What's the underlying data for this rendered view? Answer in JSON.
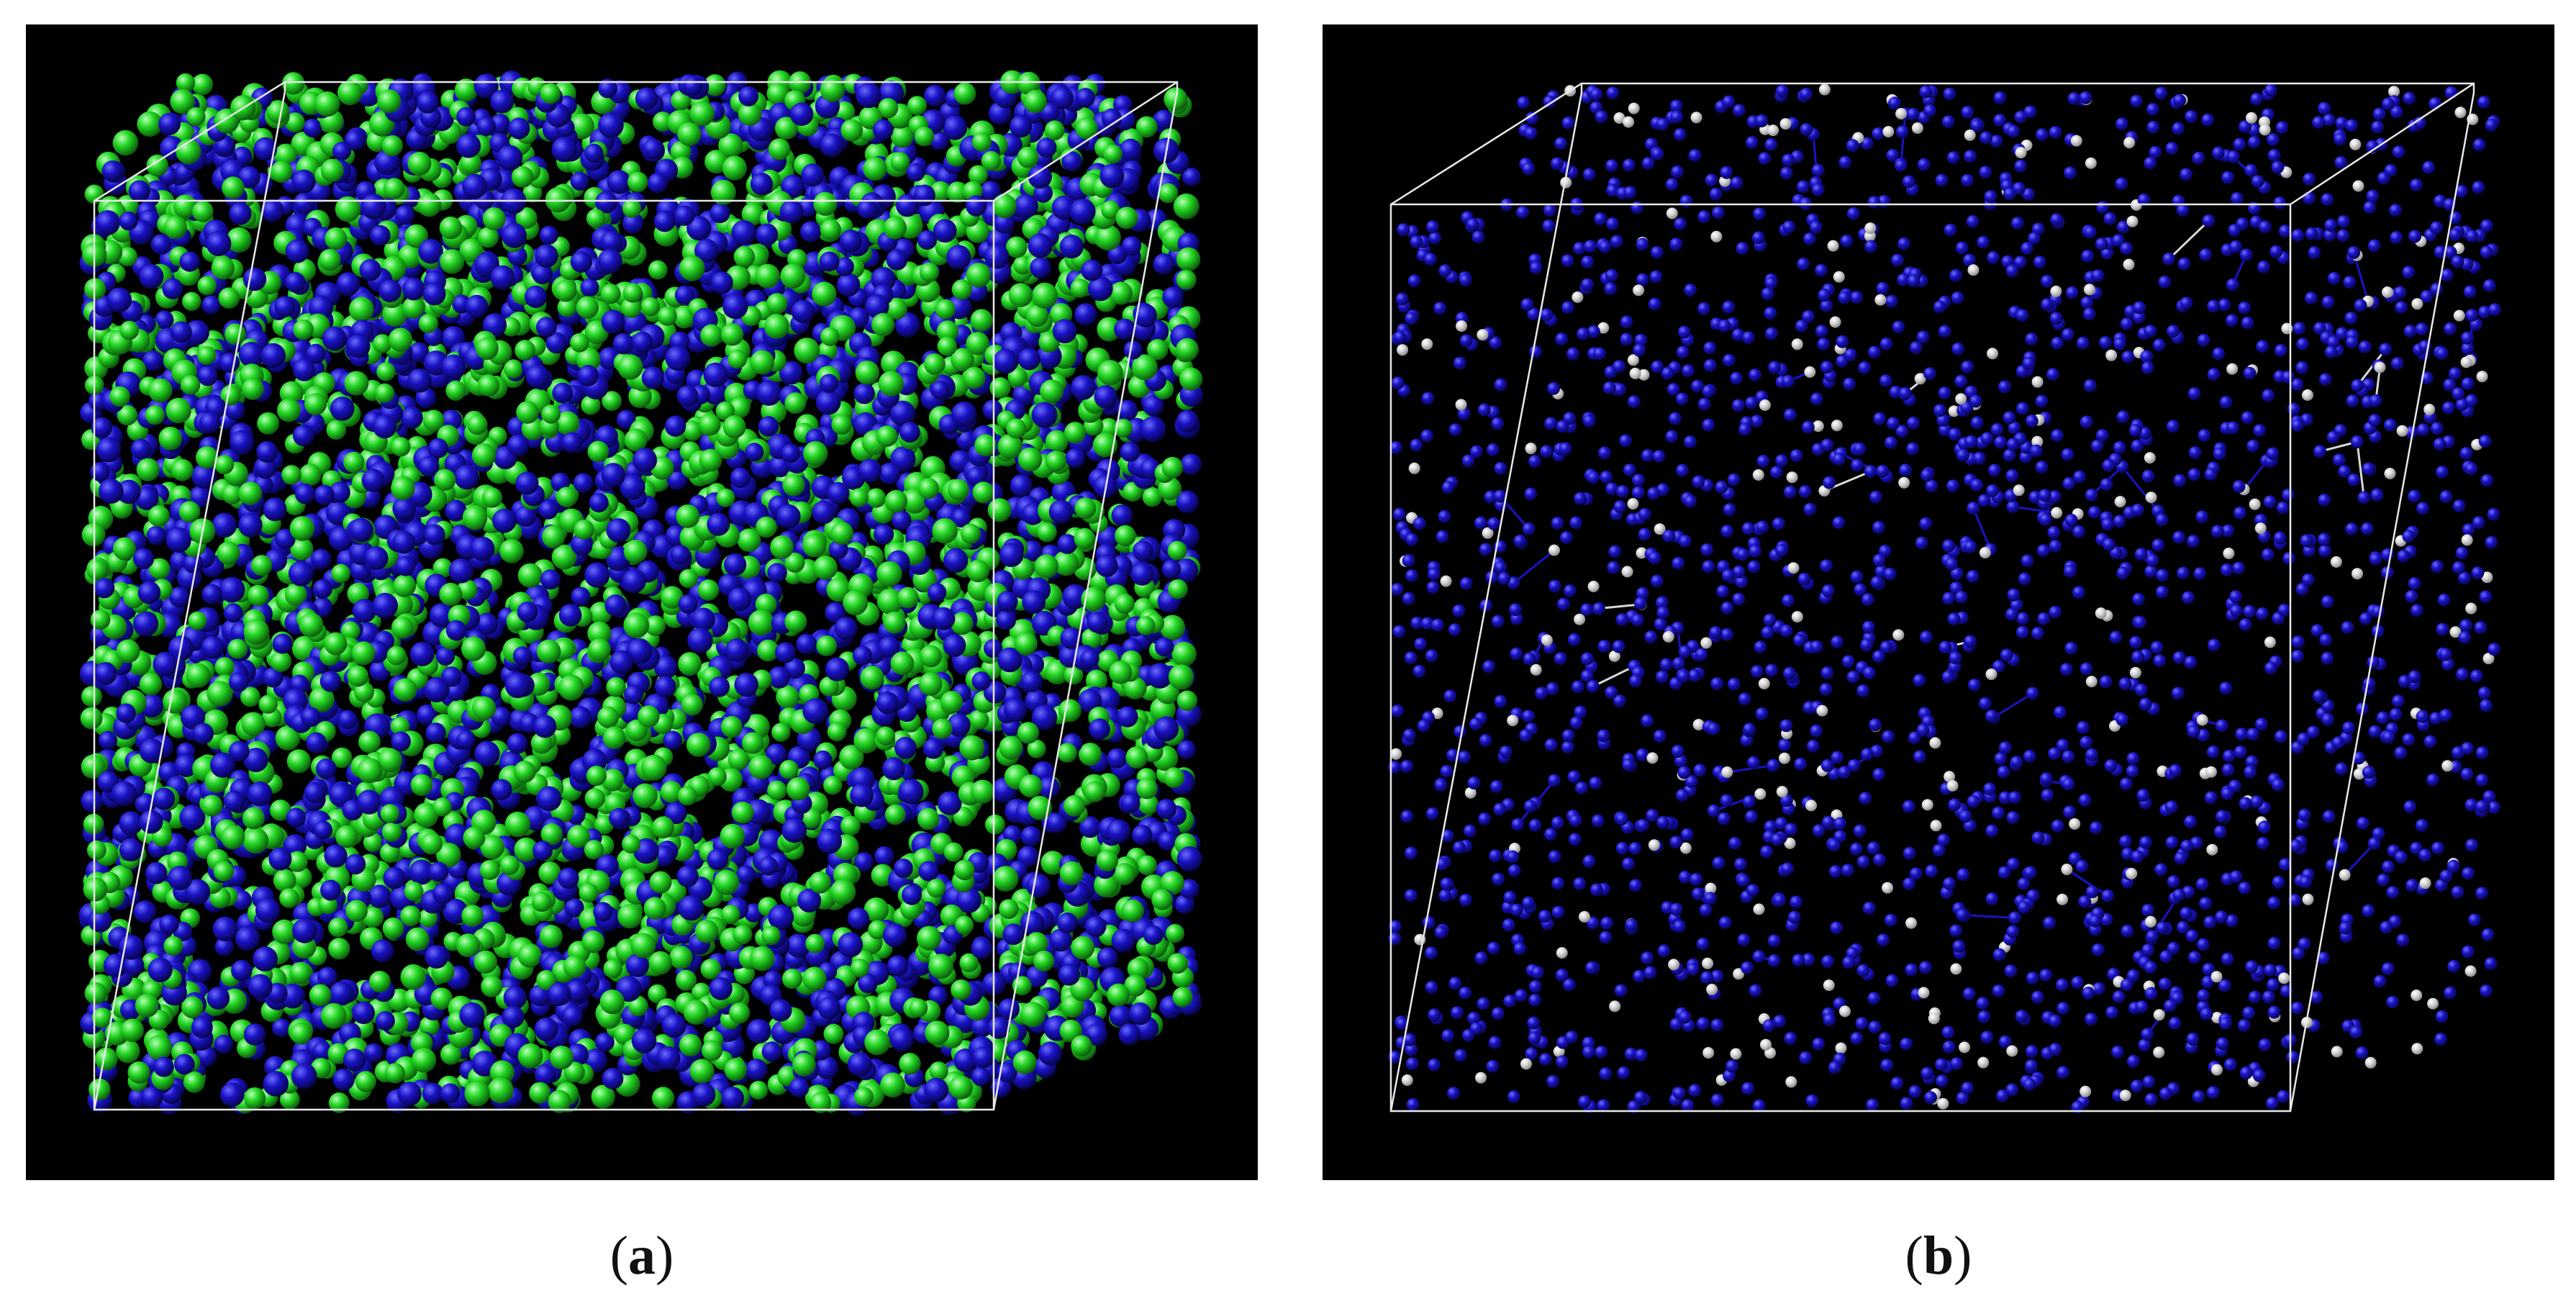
{
  "figure": {
    "panels": [
      {
        "id": "a",
        "caption_letter": "a",
        "description_colors": {
          "background": "#000000",
          "atom_primary": "#1a12c4",
          "atom_secondary": "#22d622",
          "box_edges": "#e8e8e8"
        }
      },
      {
        "id": "b",
        "caption_letter": "b",
        "description_colors": {
          "background": "#000000",
          "atom_primary": "#1a12c4",
          "atom_secondary": "#d8d8d8",
          "box_edges": "#e8e8e8"
        }
      }
    ],
    "caption_open": "(",
    "caption_close": ")"
  }
}
